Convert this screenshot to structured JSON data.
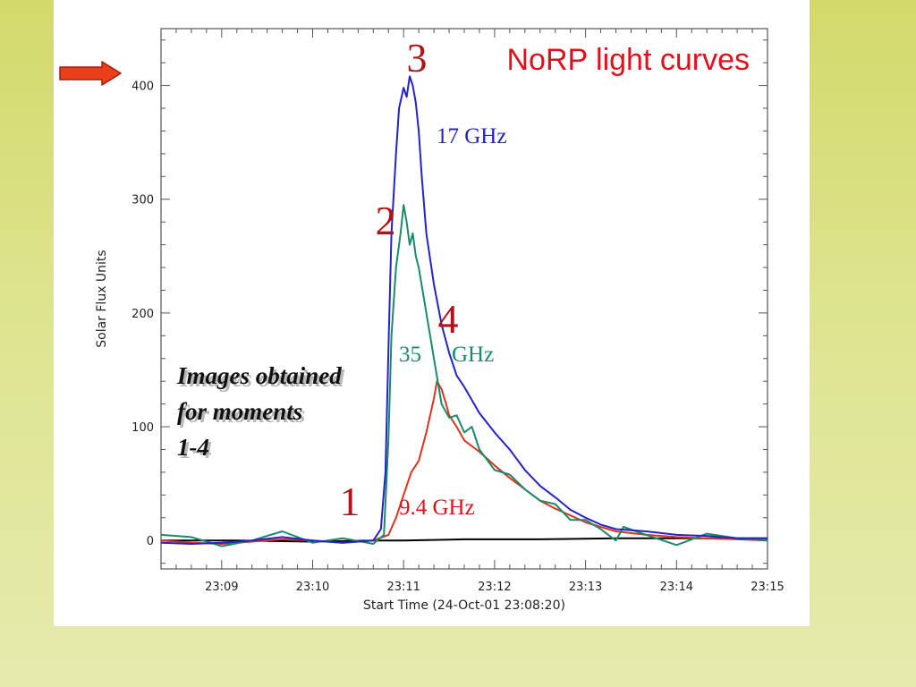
{
  "colors": {
    "background_top": "#d3d96a",
    "background_bottom": "#e6eaae",
    "panel": "#ffffff",
    "title_red": "#e0111c",
    "moment_red": "#b0141a",
    "series_17ghz": "#2323c8",
    "series_35ghz": "#1b8a6b",
    "series_94ghz": "#e0321e",
    "series_baseline": "#000000",
    "arrow_fill": "#e8401a",
    "arrow_stroke": "#a81d0a"
  },
  "annotations": {
    "title": "NoRP light curves",
    "freq_17": "17 GHz",
    "freq_35_num": "35",
    "freq_35_unit": "GHz",
    "freq_94": "9.4 GHz",
    "moment_1": "1",
    "moment_2": "2",
    "moment_3": "3",
    "moment_4": "4",
    "note_line1": "Images obtained",
    "note_line2": "for moments",
    "note_line3": "1-4"
  },
  "pointer": {
    "icon": "right-arrow-icon"
  },
  "chart_data": {
    "type": "line",
    "title": "NoRP light curves",
    "xlabel": "Start Time (24-Oct-01 23:08:20)",
    "ylabel": "Solar Flux Units",
    "x_unit": "minutes after 23:08:20",
    "xlim": [
      0,
      400
    ],
    "ylim": [
      -25,
      450
    ],
    "xticks": [
      40,
      100,
      160,
      220,
      280,
      340,
      400
    ],
    "xtick_labels": [
      "23:09",
      "23:10",
      "23:11",
      "23:12",
      "23:13",
      "23:14",
      "23:15"
    ],
    "yticks": [
      0,
      100,
      200,
      300,
      400
    ],
    "ytick_labels": [
      "0",
      "100",
      "200",
      "300",
      "400"
    ],
    "grid": false,
    "series": [
      {
        "name": "17 GHz",
        "color": "#2323c8",
        "x": [
          0,
          20,
          40,
          60,
          80,
          100,
          120,
          140,
          145,
          148,
          150,
          152,
          155,
          157,
          160,
          162,
          164,
          166,
          168,
          170,
          172,
          175,
          180,
          185,
          190,
          195,
          200,
          210,
          220,
          230,
          240,
          250,
          260,
          270,
          280,
          290,
          300,
          320,
          340,
          360,
          380,
          400
        ],
        "y": [
          -2,
          -3,
          -2,
          0,
          3,
          0,
          -2,
          0,
          10,
          60,
          170,
          270,
          340,
          380,
          398,
          390,
          408,
          400,
          385,
          360,
          320,
          270,
          225,
          190,
          165,
          145,
          135,
          112,
          95,
          80,
          62,
          48,
          38,
          27,
          20,
          14,
          10,
          8,
          5,
          4,
          2,
          2
        ]
      },
      {
        "name": "35 GHz",
        "color": "#1b8a6b",
        "x": [
          0,
          20,
          40,
          60,
          80,
          100,
          120,
          140,
          147,
          150,
          152,
          155,
          158,
          160,
          162,
          164,
          166,
          168,
          170,
          175,
          180,
          185,
          190,
          195,
          200,
          205,
          210,
          220,
          230,
          240,
          250,
          260,
          270,
          280,
          290,
          295,
          300,
          305,
          320,
          340,
          360,
          380,
          400
        ],
        "y": [
          5,
          3,
          -5,
          0,
          8,
          -2,
          2,
          -3,
          5,
          90,
          180,
          240,
          270,
          295,
          280,
          260,
          270,
          250,
          240,
          200,
          160,
          120,
          108,
          110,
          95,
          100,
          80,
          62,
          58,
          45,
          35,
          32,
          18,
          18,
          10,
          5,
          0,
          12,
          5,
          -4,
          6,
          2,
          0
        ]
      },
      {
        "name": "9.4 GHz",
        "color": "#e0321e",
        "x": [
          0,
          20,
          40,
          60,
          80,
          100,
          120,
          140,
          150,
          155,
          160,
          165,
          170,
          175,
          180,
          182,
          185,
          188,
          190,
          195,
          200,
          210,
          220,
          230,
          240,
          250,
          260,
          270,
          280,
          290,
          300,
          320,
          340,
          360,
          380,
          400
        ],
        "y": [
          0,
          -2,
          -3,
          -1,
          1,
          0,
          -2,
          0,
          5,
          20,
          40,
          60,
          70,
          95,
          125,
          140,
          133,
          120,
          110,
          100,
          88,
          78,
          66,
          55,
          45,
          35,
          28,
          22,
          16,
          12,
          8,
          5,
          3,
          2,
          1,
          0
        ]
      },
      {
        "name": "baseline",
        "color": "#000000",
        "x": [
          0,
          50,
          100,
          140,
          160,
          200,
          250,
          300,
          350,
          400
        ],
        "y": [
          0,
          0,
          -1,
          0,
          0,
          1,
          1,
          2,
          2,
          2
        ]
      }
    ],
    "moments": [
      {
        "label": "1",
        "x": 145
      },
      {
        "label": "2",
        "x": 160
      },
      {
        "label": "3",
        "x": 165
      },
      {
        "label": "4",
        "x": 180
      }
    ]
  }
}
